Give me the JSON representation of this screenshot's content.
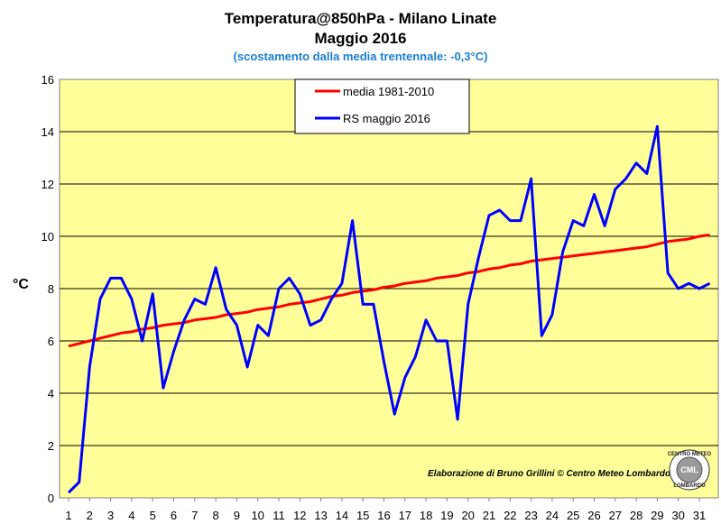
{
  "header": {
    "title_line1": "Temperatura@850hPa - Milano Linate",
    "title_line2": "Maggio 2016",
    "subtitle": "(scostamento dalla media trentennale: -0,3°C)"
  },
  "credit": {
    "text": "Elaborazione di Bruno Grillini  ©  Centro Meteo Lombardo",
    "logo_top": "CENTRO METEO",
    "logo_bottom": "LOMBARDO",
    "logo_center": "CML"
  },
  "colors": {
    "plot_background": "#ffff99",
    "mean_series": "#ff0000",
    "observed_series": "#0000ff",
    "subtitle": "#1a7fd0"
  },
  "chart_data": {
    "type": "line",
    "title": "Temperatura@850hPa - Milano Linate",
    "subtitle": "Maggio 2016",
    "xlabel": "",
    "ylabel": "°C",
    "ylim": [
      0,
      16
    ],
    "yticks": [
      0,
      2,
      4,
      6,
      8,
      10,
      12,
      14,
      16
    ],
    "xticks": [
      "1",
      "2",
      "3",
      "4",
      "5",
      "6",
      "7",
      "8",
      "9",
      "10",
      "11",
      "12",
      "13",
      "14",
      "15",
      "16",
      "17",
      "18",
      "19",
      "20",
      "21",
      "22",
      "23",
      "24",
      "25",
      "26",
      "27",
      "28",
      "29",
      "30",
      "31"
    ],
    "xlim": [
      1,
      31.5
    ],
    "grid": true,
    "legend_position": "top-center",
    "x": [
      1,
      1.5,
      2,
      2.5,
      3,
      3.5,
      4,
      4.5,
      5,
      5.5,
      6,
      6.5,
      7,
      7.5,
      8,
      8.5,
      9,
      9.5,
      10,
      10.5,
      11,
      11.5,
      12,
      12.5,
      13,
      13.5,
      14,
      14.5,
      15,
      15.5,
      16,
      16.5,
      17,
      17.5,
      18,
      18.5,
      19,
      19.5,
      20,
      20.5,
      21,
      21.5,
      22,
      22.5,
      23,
      23.5,
      24,
      24.5,
      25,
      25.5,
      26,
      26.5,
      27,
      27.5,
      28,
      28.5,
      29,
      29.5,
      30,
      30.5,
      31,
      31.5
    ],
    "series": [
      {
        "name": "media 1981-2010",
        "color": "#ff0000",
        "values": [
          5.8,
          5.9,
          6.0,
          6.1,
          6.2,
          6.3,
          6.35,
          6.45,
          6.5,
          6.6,
          6.65,
          6.7,
          6.8,
          6.85,
          6.9,
          7.0,
          7.05,
          7.1,
          7.2,
          7.25,
          7.3,
          7.4,
          7.45,
          7.5,
          7.6,
          7.7,
          7.75,
          7.85,
          7.9,
          7.95,
          8.05,
          8.1,
          8.2,
          8.25,
          8.3,
          8.4,
          8.45,
          8.5,
          8.6,
          8.65,
          8.75,
          8.8,
          8.9,
          8.95,
          9.05,
          9.1,
          9.15,
          9.2,
          9.25,
          9.3,
          9.35,
          9.4,
          9.45,
          9.5,
          9.55,
          9.6,
          9.7,
          9.8,
          9.85,
          9.9,
          10.0,
          10.05
        ]
      },
      {
        "name": "RS maggio 2016",
        "color": "#0000ff",
        "values": [
          0.2,
          0.6,
          5.0,
          7.6,
          8.4,
          8.4,
          7.6,
          6.0,
          7.8,
          4.2,
          5.6,
          6.8,
          7.6,
          7.4,
          8.8,
          7.2,
          6.6,
          5.0,
          6.6,
          6.2,
          8.0,
          8.4,
          7.8,
          6.6,
          6.8,
          7.6,
          8.2,
          10.6,
          7.4,
          7.4,
          5.2,
          3.2,
          4.6,
          5.4,
          6.8,
          6.0,
          6.0,
          3.0,
          7.4,
          9.2,
          10.8,
          11.0,
          10.6,
          10.6,
          12.2,
          6.2,
          7.0,
          9.4,
          10.6,
          10.4,
          11.6,
          10.4,
          11.8,
          12.2,
          12.8,
          12.4,
          14.2,
          8.6,
          8.0,
          8.2,
          8.0,
          8.2
        ]
      }
    ]
  }
}
